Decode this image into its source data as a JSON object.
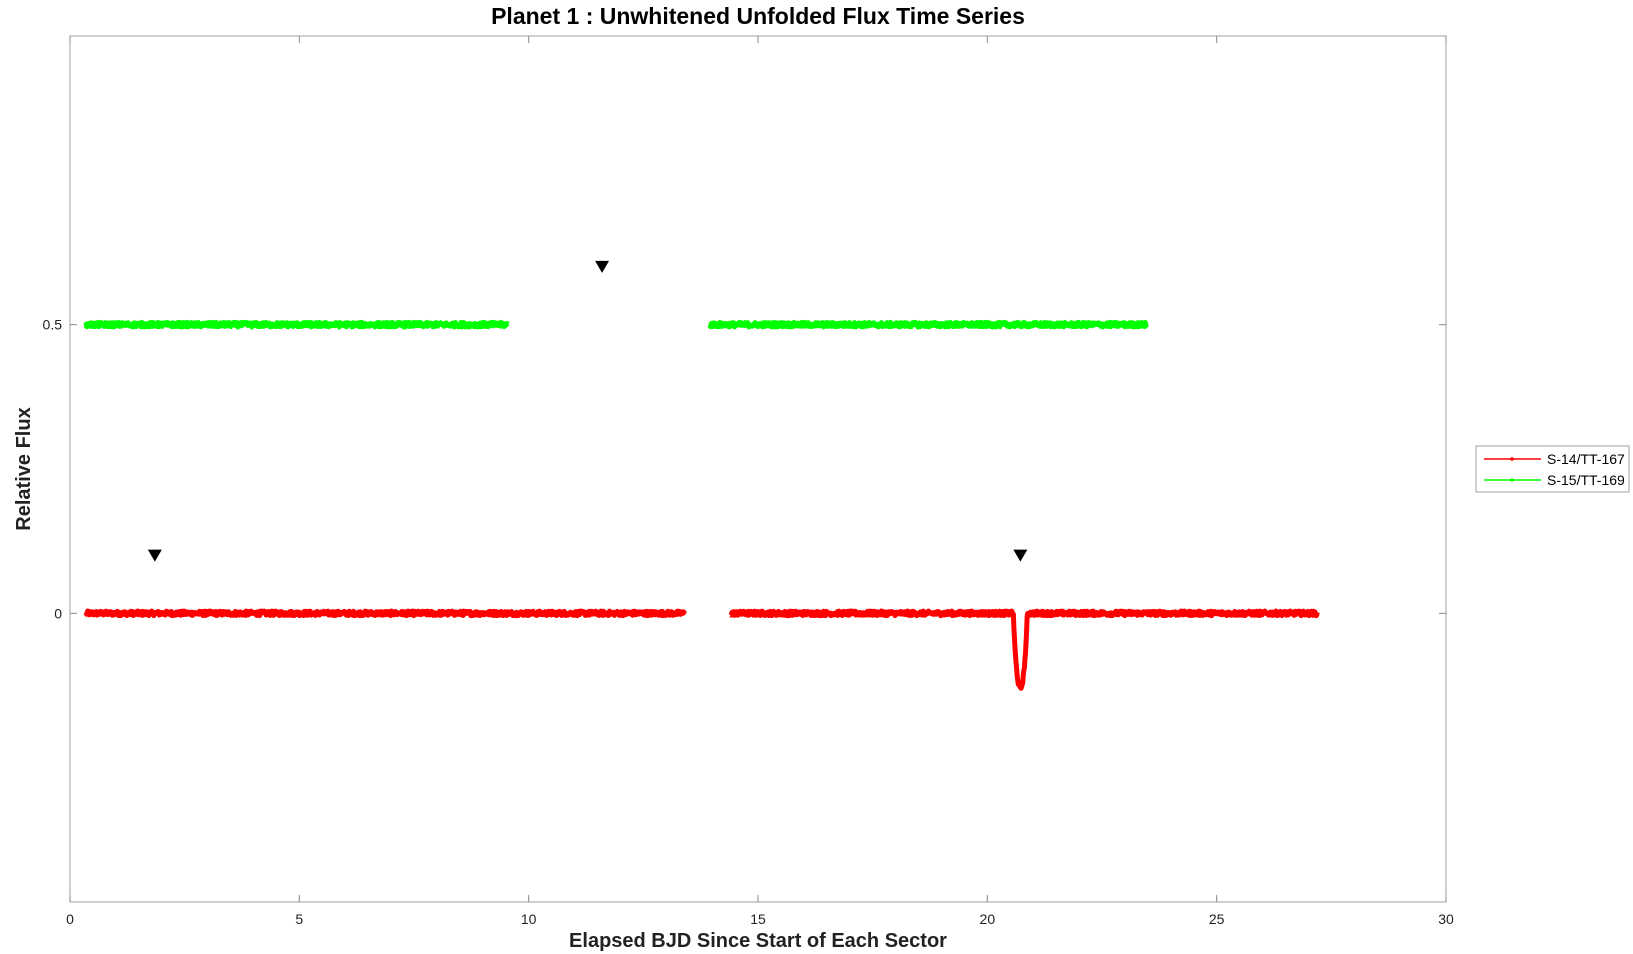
{
  "chart_data": {
    "type": "line",
    "title": "Planet 1 : Unwhitened Unfolded Flux Time Series",
    "xlabel": "Elapsed BJD Since Start of Each Sector",
    "ylabel": "Relative Flux",
    "xlim": [
      0,
      30
    ],
    "ylim": [
      -0.5,
      1.0
    ],
    "xticks": [
      0,
      5,
      10,
      15,
      20,
      25,
      30
    ],
    "xtick_labels": [
      "0",
      "5",
      "10",
      "15",
      "20",
      "25",
      "30"
    ],
    "yticks": [
      0,
      0.5
    ],
    "ytick_labels": [
      "0",
      "0.5"
    ],
    "grid": false,
    "legend_position": "outside-right",
    "series": [
      {
        "name": "S-14/TT-167",
        "color": "#ff0000",
        "offset": 0,
        "segments": [
          {
            "x_start": 0.35,
            "x_end": 13.4
          },
          {
            "x_start": 14.4,
            "x_end": 27.2
          }
        ],
        "transit": {
          "x_center": 20.72,
          "depth": -0.13,
          "duration": 0.3
        }
      },
      {
        "name": "S-15/TT-169",
        "color": "#00ff00",
        "offset": 0.5,
        "segments": [
          {
            "x_start": 0.35,
            "x_end": 9.55
          },
          {
            "x_start": 13.95,
            "x_end": 23.5
          }
        ]
      }
    ],
    "markers": [
      {
        "x": 1.85,
        "y": 0.1,
        "symbol": "down-triangle"
      },
      {
        "x": 11.6,
        "y": 0.6,
        "symbol": "down-triangle"
      },
      {
        "x": 20.72,
        "y": 0.1,
        "symbol": "down-triangle"
      }
    ]
  }
}
